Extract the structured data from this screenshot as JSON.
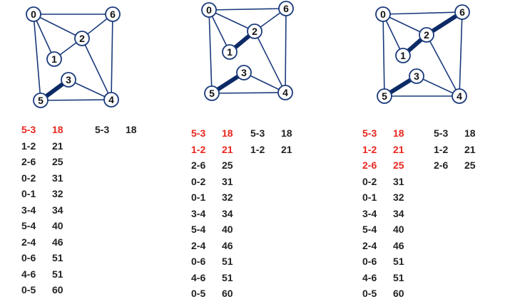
{
  "colors": {
    "edge": "#1a3a7c",
    "mst_edge": "#0c2a66",
    "node_border": "#1a3a7c",
    "selected_text": "#e8261e",
    "normal_text": "#222222"
  },
  "edges": [
    {
      "id": "5-3",
      "a": "5",
      "b": "3"
    },
    {
      "id": "1-2",
      "a": "1",
      "b": "2"
    },
    {
      "id": "2-6",
      "a": "2",
      "b": "6"
    },
    {
      "id": "0-2",
      "a": "0",
      "b": "2"
    },
    {
      "id": "0-1",
      "a": "0",
      "b": "1"
    },
    {
      "id": "3-4",
      "a": "3",
      "b": "4"
    },
    {
      "id": "5-4",
      "a": "5",
      "b": "4"
    },
    {
      "id": "2-4",
      "a": "2",
      "b": "4"
    },
    {
      "id": "0-6",
      "a": "0",
      "b": "6"
    },
    {
      "id": "4-6",
      "a": "4",
      "b": "6"
    },
    {
      "id": "0-5",
      "a": "0",
      "b": "5"
    }
  ],
  "panels": [
    {
      "nodes": [
        {
          "id": "0",
          "label": "0"
        },
        {
          "id": "6",
          "label": "6"
        },
        {
          "id": "2",
          "label": "2"
        },
        {
          "id": "1",
          "label": "1"
        },
        {
          "id": "3",
          "label": "3"
        },
        {
          "id": "5",
          "label": "5"
        },
        {
          "id": "4",
          "label": "4"
        }
      ],
      "bold_edges": [
        "5-3"
      ],
      "sorted_edges": [
        {
          "edge": "5-3",
          "weight": "18",
          "selected": true
        },
        {
          "edge": "1-2",
          "weight": "21",
          "selected": false
        },
        {
          "edge": "2-6",
          "weight": "25",
          "selected": false
        },
        {
          "edge": "0-2",
          "weight": "31",
          "selected": false
        },
        {
          "edge": "0-1",
          "weight": "32",
          "selected": false
        },
        {
          "edge": "3-4",
          "weight": "34",
          "selected": false
        },
        {
          "edge": "5-4",
          "weight": "40",
          "selected": false
        },
        {
          "edge": "2-4",
          "weight": "46",
          "selected": false
        },
        {
          "edge": "0-6",
          "weight": "51",
          "selected": false
        },
        {
          "edge": "4-6",
          "weight": "51",
          "selected": false
        },
        {
          "edge": "0-5",
          "weight": "60",
          "selected": false
        }
      ],
      "mst": [
        {
          "edge": "5-3",
          "weight": "18"
        }
      ]
    },
    {
      "nodes": [
        {
          "id": "0",
          "label": "0"
        },
        {
          "id": "6",
          "label": "6"
        },
        {
          "id": "2",
          "label": "2"
        },
        {
          "id": "1",
          "label": "1"
        },
        {
          "id": "3",
          "label": "3"
        },
        {
          "id": "5",
          "label": "5"
        },
        {
          "id": "4",
          "label": "4"
        }
      ],
      "bold_edges": [
        "5-3",
        "1-2"
      ],
      "sorted_edges": [
        {
          "edge": "5-3",
          "weight": "18",
          "selected": true
        },
        {
          "edge": "1-2",
          "weight": "21",
          "selected": true
        },
        {
          "edge": "2-6",
          "weight": "25",
          "selected": false
        },
        {
          "edge": "0-2",
          "weight": "31",
          "selected": false
        },
        {
          "edge": "0-1",
          "weight": "32",
          "selected": false
        },
        {
          "edge": "3-4",
          "weight": "34",
          "selected": false
        },
        {
          "edge": "5-4",
          "weight": "40",
          "selected": false
        },
        {
          "edge": "2-4",
          "weight": "46",
          "selected": false
        },
        {
          "edge": "0-6",
          "weight": "51",
          "selected": false
        },
        {
          "edge": "4-6",
          "weight": "51",
          "selected": false
        },
        {
          "edge": "0-5",
          "weight": "60",
          "selected": false
        }
      ],
      "mst": [
        {
          "edge": "5-3",
          "weight": "18"
        },
        {
          "edge": "1-2",
          "weight": "21"
        }
      ]
    },
    {
      "nodes": [
        {
          "id": "0",
          "label": "0"
        },
        {
          "id": "6",
          "label": "6"
        },
        {
          "id": "2",
          "label": "2"
        },
        {
          "id": "1",
          "label": "1"
        },
        {
          "id": "3",
          "label": "3"
        },
        {
          "id": "5",
          "label": "5"
        },
        {
          "id": "4",
          "label": "4"
        }
      ],
      "bold_edges": [
        "5-3",
        "1-2",
        "2-6"
      ],
      "sorted_edges": [
        {
          "edge": "5-3",
          "weight": "18",
          "selected": true
        },
        {
          "edge": "1-2",
          "weight": "21",
          "selected": true
        },
        {
          "edge": "2-6",
          "weight": "25",
          "selected": true
        },
        {
          "edge": "0-2",
          "weight": "31",
          "selected": false
        },
        {
          "edge": "0-1",
          "weight": "32",
          "selected": false
        },
        {
          "edge": "3-4",
          "weight": "34",
          "selected": false
        },
        {
          "edge": "5-4",
          "weight": "40",
          "selected": false
        },
        {
          "edge": "2-4",
          "weight": "46",
          "selected": false
        },
        {
          "edge": "0-6",
          "weight": "51",
          "selected": false
        },
        {
          "edge": "4-6",
          "weight": "51",
          "selected": false
        },
        {
          "edge": "0-5",
          "weight": "60",
          "selected": false
        }
      ],
      "mst": [
        {
          "edge": "5-3",
          "weight": "18"
        },
        {
          "edge": "1-2",
          "weight": "21"
        },
        {
          "edge": "2-6",
          "weight": "25"
        }
      ]
    }
  ]
}
